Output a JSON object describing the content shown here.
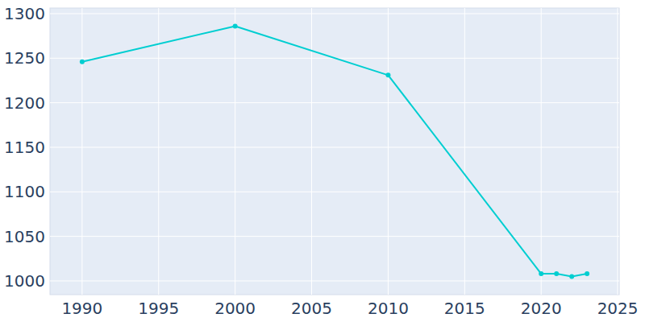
{
  "chart_data": {
    "type": "line",
    "x": [
      1990,
      2000,
      2010,
      2020,
      2021,
      2022,
      2023
    ],
    "values": [
      1246,
      1286,
      1231,
      1008,
      1008,
      1005,
      1008
    ],
    "color": "#00ced1",
    "marker": "circle",
    "xlim": [
      1987.9,
      2025.1
    ],
    "xticks": [
      1990,
      1995,
      2000,
      2005,
      2010,
      2015,
      2020,
      2025
    ],
    "ylim": [
      984.6,
      1306.3
    ],
    "yticks": [
      1000,
      1050,
      1100,
      1150,
      1200,
      1250,
      1300
    ],
    "grid": true
  }
}
